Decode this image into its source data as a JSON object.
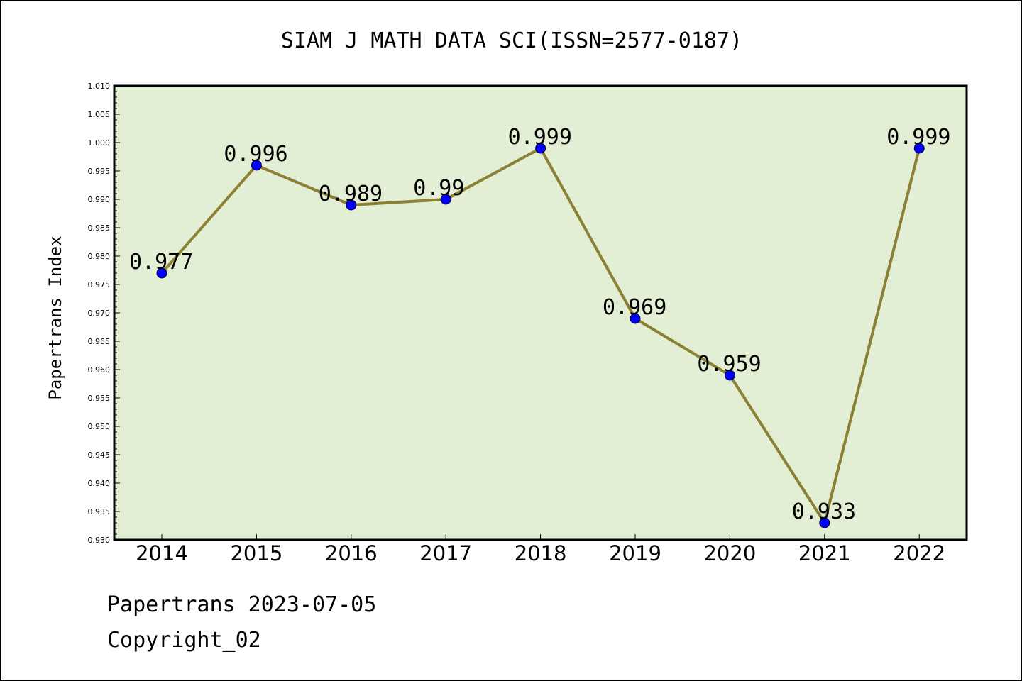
{
  "chart_data": {
    "type": "line",
    "title": "SIAM J MATH DATA SCI(ISSN=2577-0187)",
    "xlabel": "",
    "ylabel": "Papertrans Index",
    "categories": [
      "2014",
      "2015",
      "2016",
      "2017",
      "2018",
      "2019",
      "2020",
      "2021",
      "2022"
    ],
    "values": [
      0.977,
      0.996,
      0.989,
      0.99,
      0.999,
      0.969,
      0.959,
      0.933,
      0.999
    ],
    "data_labels": [
      "0.977",
      "0.996",
      "0.989",
      "0.99",
      "0.999",
      "0.969",
      "0.959",
      "0.933",
      "0.999"
    ],
    "ylim": [
      0.93,
      1.01
    ],
    "yticks": [
      "0.930",
      "0.935",
      "0.940",
      "0.945",
      "0.950",
      "0.955",
      "0.960",
      "0.965",
      "0.970",
      "0.975",
      "0.980",
      "0.985",
      "0.990",
      "0.995",
      "1.000",
      "1.005",
      "1.010"
    ],
    "grid": false,
    "legend": "none",
    "colors": {
      "plot_background": "#e2efd5",
      "line": "#8b8034",
      "marker": "#0000ff"
    }
  },
  "footer": {
    "source_line": "Papertrans 2023-07-05",
    "copyright": "Copyright_02"
  }
}
